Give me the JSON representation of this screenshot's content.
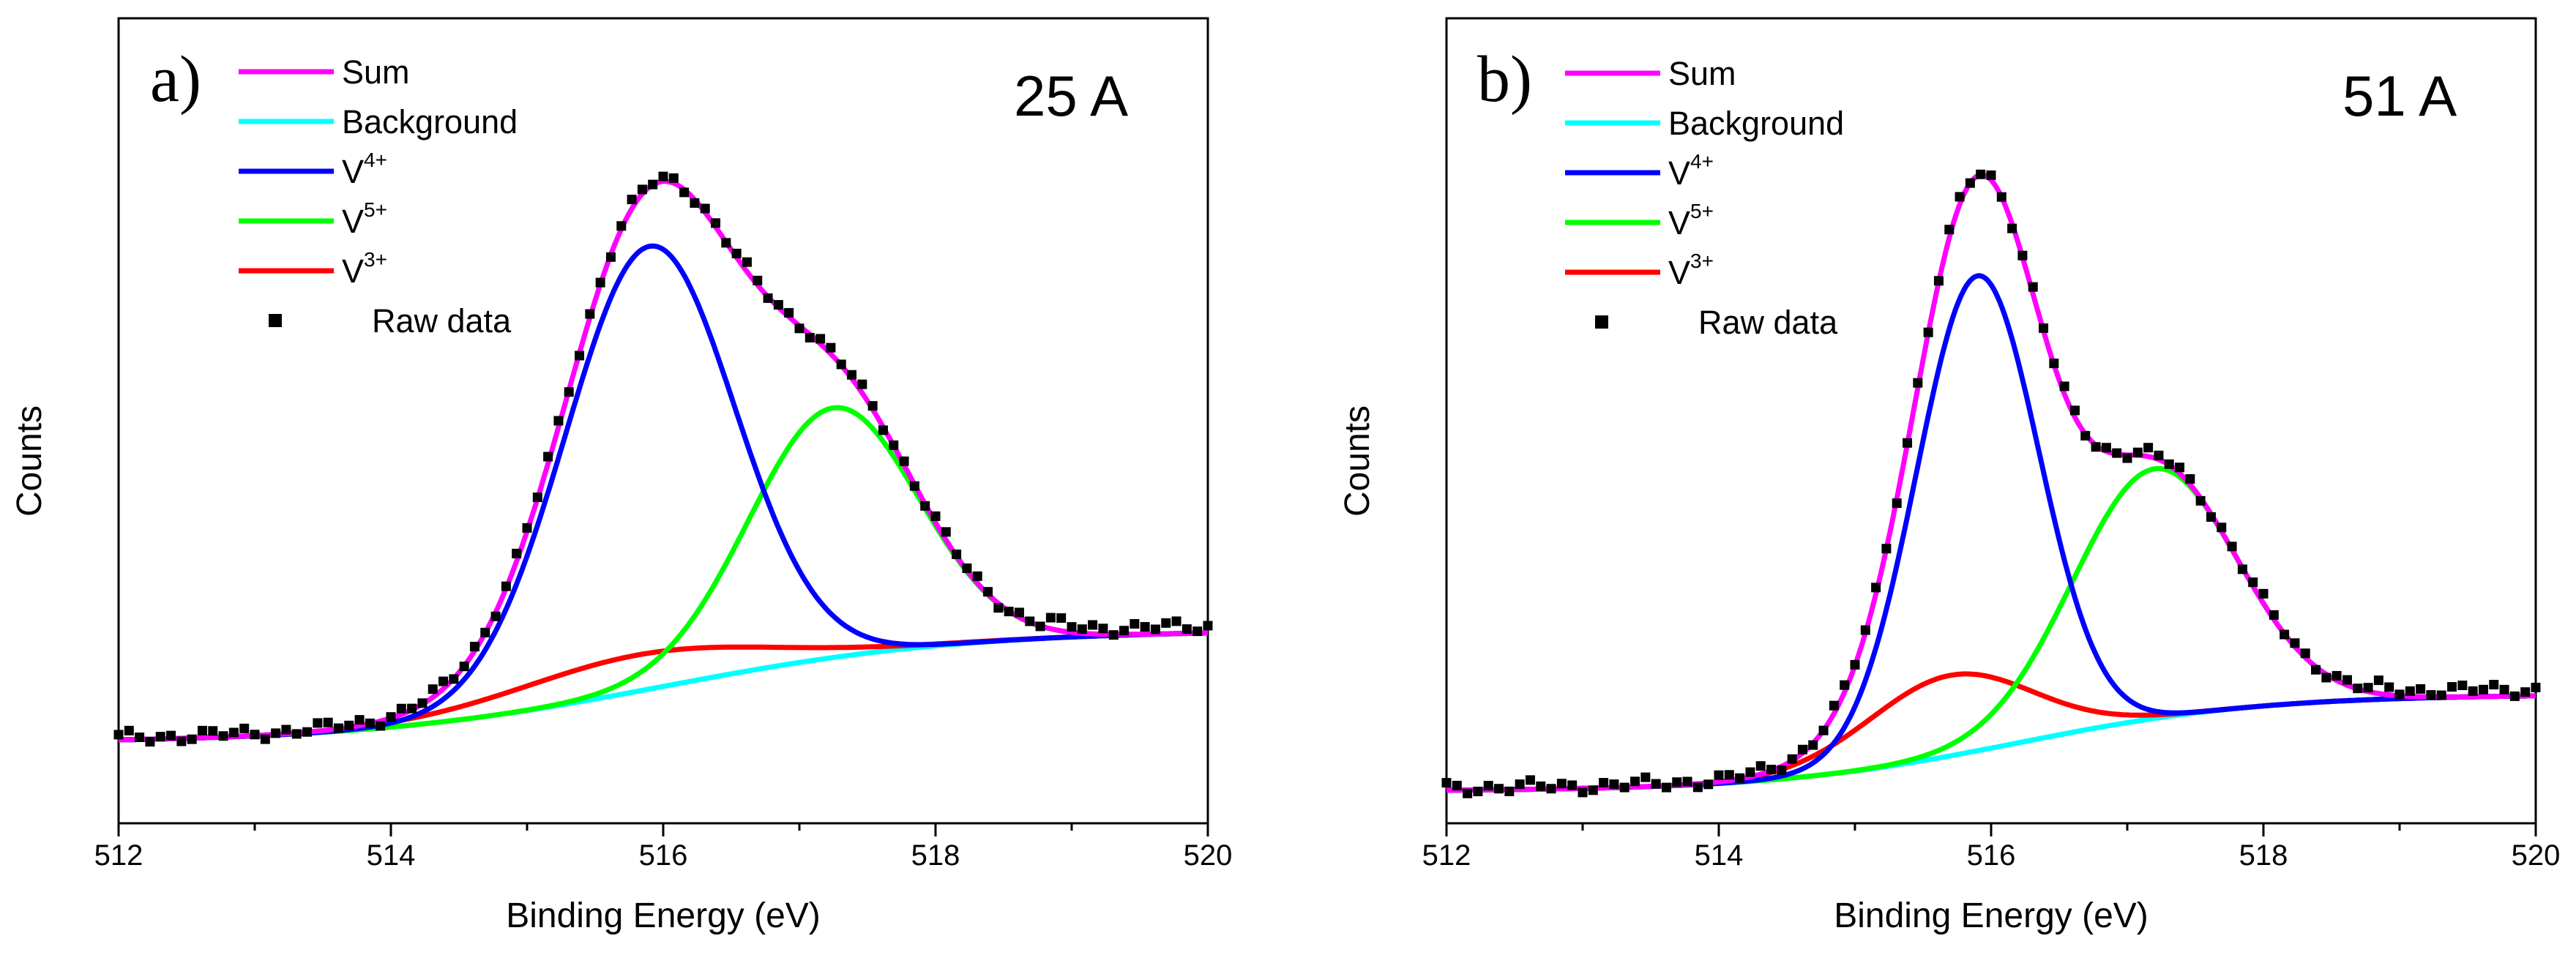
{
  "chart_data": [
    {
      "type": "line",
      "panel_label": "a)",
      "annotation": "25 A",
      "xlabel": "Binding Energy (eV)",
      "ylabel": "Counts",
      "xlim": [
        512,
        520
      ],
      "ylim": [
        0,
        100
      ],
      "x_ticks": [
        "512",
        "514",
        "516",
        "518",
        "520"
      ],
      "y_ticks_labeled": false,
      "grid": false,
      "legend_placement": "top-left",
      "legend": [
        {
          "key": "sum",
          "base": "Sum",
          "sup": "",
          "color": "#ff00ff",
          "marker": "line"
        },
        {
          "key": "background",
          "base": "Background",
          "sup": "",
          "color": "#00ffff",
          "marker": "line"
        },
        {
          "key": "v4",
          "base": "V",
          "sup": "4+",
          "color": "#0000ff",
          "marker": "line"
        },
        {
          "key": "v5",
          "base": "V",
          "sup": "5+",
          "color": "#00ff00",
          "marker": "line"
        },
        {
          "key": "v3",
          "base": "V",
          "sup": "3+",
          "color": "#ff0000",
          "marker": "line"
        },
        {
          "key": "raw",
          "base": "Raw data",
          "sup": "",
          "color": "#000000",
          "marker": "square"
        }
      ],
      "model": {
        "background": {
          "low": 10,
          "high": 24,
          "center": 516.0,
          "width": 1.1
        },
        "peaks": [
          {
            "name": "V4+",
            "center": 515.9,
            "amplitude": 55,
            "sigma": 0.62
          },
          {
            "name": "V5+",
            "center": 517.25,
            "amplitude": 31,
            "sigma": 0.62
          },
          {
            "name": "V3+",
            "center": 515.8,
            "amplitude": 4.5,
            "sigma": 0.9
          }
        ]
      },
      "series": [
        {
          "name": "Sum",
          "x": [
            512.0,
            512.5,
            513.0,
            513.5,
            514.0,
            514.5,
            515.0,
            515.5,
            516.0,
            516.5,
            517.0,
            517.5,
            518.0,
            518.5,
            519.0,
            519.5,
            520.0
          ],
          "values": [
            10.0,
            10.1,
            10.6,
            12.2,
            15.8,
            24.7,
            43.9,
            68.6,
            79.0,
            66.2,
            58.2,
            48.9,
            33.4,
            25.5,
            24.1,
            24.0,
            24.0
          ]
        },
        {
          "name": "Background",
          "x": [
            512.0,
            513.0,
            514.0,
            515.0,
            516.0,
            517.0,
            518.0,
            519.0,
            520.0
          ],
          "values": [
            10.0,
            10.1,
            10.8,
            13.1,
            17.0,
            20.9,
            23.2,
            23.9,
            24.0
          ]
        },
        {
          "name": "V4+",
          "x": [
            512.0,
            513.0,
            514.0,
            514.5,
            515.0,
            515.5,
            516.0,
            516.5,
            517.0,
            517.5,
            518.0,
            519.0,
            520.0
          ],
          "values": [
            10.0,
            10.1,
            11.8,
            15.8,
            30.8,
            54.4,
            65.8,
            47.5,
            29.4,
            24.2,
            23.3,
            23.9,
            24.0
          ]
        },
        {
          "name": "V5+",
          "x": [
            512.0,
            513.0,
            514.0,
            515.0,
            515.5,
            516.0,
            516.5,
            517.0,
            517.25,
            517.5,
            518.0,
            518.5,
            519.0,
            520.0
          ],
          "values": [
            10.0,
            10.1,
            10.8,
            13.2,
            15.1,
            20.1,
            32.7,
            49.9,
            52.3,
            49.9,
            33.2,
            24.8,
            24.0,
            24.0
          ]
        },
        {
          "name": "V3+",
          "x": [
            512.0,
            513.0,
            514.0,
            514.5,
            515.0,
            515.5,
            516.0,
            516.5,
            517.0,
            518.0,
            519.0,
            520.0
          ],
          "values": [
            10.0,
            10.2,
            12.9,
            16.6,
            20.6,
            23.2,
            24.2,
            23.6,
            23.0,
            23.3,
            23.9,
            24.0
          ]
        },
        {
          "name": "Raw data",
          "x": [
            512.0,
            512.5,
            513.0,
            513.5,
            514.0,
            514.5,
            515.0,
            515.5,
            516.0,
            516.5,
            517.0,
            517.5,
            518.0,
            518.5,
            519.0,
            519.5,
            520.0
          ],
          "values": [
            10.3,
            10.6,
            11.1,
            12.8,
            16.4,
            25.3,
            44.6,
            69.1,
            79.9,
            66.9,
            59.0,
            49.5,
            34.1,
            26.2,
            24.8,
            25.7,
            25.2
          ]
        }
      ]
    },
    {
      "type": "line",
      "panel_label": "b)",
      "annotation": "51 A",
      "xlabel": "Binding Energy (eV)",
      "ylabel": "Counts",
      "xlim": [
        512,
        520
      ],
      "ylim": [
        0,
        100
      ],
      "x_ticks": [
        "512",
        "514",
        "516",
        "518",
        "520"
      ],
      "y_ticks_labeled": false,
      "grid": false,
      "legend_placement": "top-left",
      "legend": [
        {
          "key": "sum",
          "base": "Sum",
          "sup": "",
          "color": "#ff00ff",
          "marker": "line"
        },
        {
          "key": "background",
          "base": "Background",
          "sup": "",
          "color": "#00ffff",
          "marker": "line"
        },
        {
          "key": "v4",
          "base": "V",
          "sup": "4+",
          "color": "#0000ff",
          "marker": "line"
        },
        {
          "key": "v5",
          "base": "V",
          "sup": "5+",
          "color": "#00ff00",
          "marker": "line"
        },
        {
          "key": "v3",
          "base": "V",
          "sup": "3+",
          "color": "#ff0000",
          "marker": "line"
        },
        {
          "key": "raw",
          "base": "Raw data",
          "sup": "",
          "color": "#000000",
          "marker": "square"
        }
      ],
      "model": {
        "background": {
          "low": 4,
          "high": 16,
          "center": 516.2,
          "width": 0.9
        },
        "peaks": [
          {
            "name": "V4+",
            "center": 515.9,
            "amplitude": 59,
            "sigma": 0.45
          },
          {
            "name": "V5+",
            "center": 517.2,
            "amplitude": 31,
            "sigma": 0.6
          },
          {
            "name": "V3+",
            "center": 515.7,
            "amplitude": 10,
            "sigma": 0.6
          }
        ]
      },
      "series": [
        {
          "name": "Sum",
          "x": [
            512.0,
            512.5,
            513.0,
            513.5,
            514.0,
            514.5,
            515.0,
            515.5,
            516.0,
            516.5,
            517.0,
            517.5,
            518.0,
            518.5,
            519.0,
            519.5,
            520.0
          ],
          "values": [
            4.0,
            4.0,
            4.4,
            5.4,
            7.6,
            14.5,
            35.5,
            65.6,
            79.0,
            54.8,
            45.2,
            38.6,
            25.2,
            18.0,
            16.1,
            16.0,
            16.0
          ]
        },
        {
          "name": "Background",
          "x": [
            512.0,
            513.0,
            514.0,
            515.0,
            516.0,
            517.0,
            518.0,
            519.0,
            520.0
          ],
          "values": [
            4.0,
            4.0,
            4.4,
            6.3,
            10.3,
            14.1,
            15.7,
            16.0,
            16.0
          ]
        },
        {
          "name": "V4+",
          "x": [
            512.0,
            513.0,
            514.0,
            514.5,
            515.0,
            515.5,
            516.0,
            516.5,
            517.0,
            517.5,
            518.0,
            519.0,
            520.0
          ],
          "values": [
            4.0,
            4.0,
            4.6,
            7.2,
            19.9,
            47.1,
            68.1,
            36.7,
            18.5,
            15.2,
            15.7,
            16.0,
            16.0
          ]
        },
        {
          "name": "V5+",
          "x": [
            512.0,
            513.0,
            514.0,
            515.0,
            515.5,
            516.0,
            516.5,
            517.0,
            517.2,
            517.5,
            518.0,
            518.5,
            519.0,
            520.0
          ],
          "values": [
            4.0,
            4.0,
            4.5,
            6.8,
            8.6,
            13.0,
            26.8,
            42.7,
            45.1,
            42.0,
            30.6,
            18.7,
            16.1,
            16.0
          ]
        },
        {
          "name": "V3+",
          "x": [
            512.0,
            513.0,
            514.0,
            514.5,
            515.0,
            515.5,
            516.0,
            516.5,
            517.0,
            518.0,
            519.0,
            520.0
          ],
          "values": [
            4.0,
            4.0,
            4.7,
            7.8,
            12.5,
            15.7,
            16.0,
            14.5,
            14.1,
            15.7,
            16.0,
            16.0
          ]
        },
        {
          "name": "Raw data",
          "x": [
            512.0,
            512.5,
            513.0,
            513.5,
            514.0,
            514.5,
            515.0,
            515.5,
            516.0,
            516.5,
            517.0,
            517.5,
            518.0,
            518.5,
            519.0,
            519.5,
            520.0
          ],
          "values": [
            4.4,
            4.5,
            5.1,
            6.1,
            8.3,
            15.3,
            36.2,
            66.3,
            79.8,
            55.6,
            46.1,
            39.3,
            25.9,
            18.6,
            16.8,
            16.6,
            17.4
          ]
        }
      ]
    }
  ]
}
